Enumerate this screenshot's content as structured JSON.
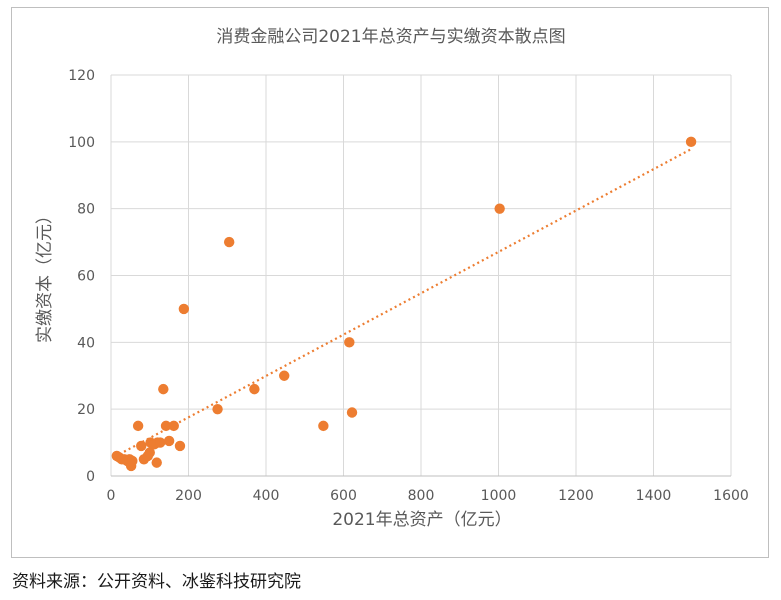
{
  "chart_data": {
    "type": "scatter",
    "title": "消费金融公司2021年总资产与实缴资本散点图",
    "xlabel": "2021年总资产（亿元）",
    "ylabel": "实缴资本（亿元）",
    "xlim": [
      0,
      1600
    ],
    "ylim": [
      0,
      120
    ],
    "xticks": [
      0,
      200,
      400,
      600,
      800,
      1000,
      1200,
      1400,
      1600
    ],
    "yticks": [
      0,
      20,
      40,
      60,
      80,
      100,
      120
    ],
    "xtick_labels": [
      "0",
      "200",
      "400",
      "600",
      "800",
      "1000",
      "1200",
      "1400",
      "1600"
    ],
    "ytick_labels": [
      "0",
      "20",
      "40",
      "60",
      "80",
      "100",
      "120"
    ],
    "grid": true,
    "legend": "none",
    "marker_color": "#ed7d31",
    "trendline": {
      "type": "linear",
      "style": "dotted",
      "color": "#ed7d31",
      "x": [
        10,
        1500
      ],
      "y": [
        5.8,
        98
      ]
    },
    "points": [
      {
        "x": 15,
        "y": 6
      },
      {
        "x": 22,
        "y": 5.5
      },
      {
        "x": 28,
        "y": 5
      },
      {
        "x": 35,
        "y": 5
      },
      {
        "x": 42,
        "y": 4.5
      },
      {
        "x": 48,
        "y": 5
      },
      {
        "x": 52,
        "y": 3
      },
      {
        "x": 55,
        "y": 4.5
      },
      {
        "x": 70,
        "y": 15
      },
      {
        "x": 78,
        "y": 9
      },
      {
        "x": 85,
        "y": 5
      },
      {
        "x": 95,
        "y": 6
      },
      {
        "x": 100,
        "y": 7
      },
      {
        "x": 102,
        "y": 10
      },
      {
        "x": 112,
        "y": 9.5
      },
      {
        "x": 120,
        "y": 10
      },
      {
        "x": 118,
        "y": 4
      },
      {
        "x": 127,
        "y": 10
      },
      {
        "x": 135,
        "y": 26
      },
      {
        "x": 142,
        "y": 15
      },
      {
        "x": 150,
        "y": 10.5
      },
      {
        "x": 162,
        "y": 15
      },
      {
        "x": 178,
        "y": 9
      },
      {
        "x": 188,
        "y": 50
      },
      {
        "x": 275,
        "y": 20
      },
      {
        "x": 305,
        "y": 70
      },
      {
        "x": 370,
        "y": 26
      },
      {
        "x": 447,
        "y": 30
      },
      {
        "x": 548,
        "y": 15
      },
      {
        "x": 615,
        "y": 40
      },
      {
        "x": 622,
        "y": 19
      },
      {
        "x": 1003,
        "y": 80
      },
      {
        "x": 1497,
        "y": 100
      }
    ]
  },
  "source_note": "资料来源：公开资料、冰鉴科技研究院"
}
